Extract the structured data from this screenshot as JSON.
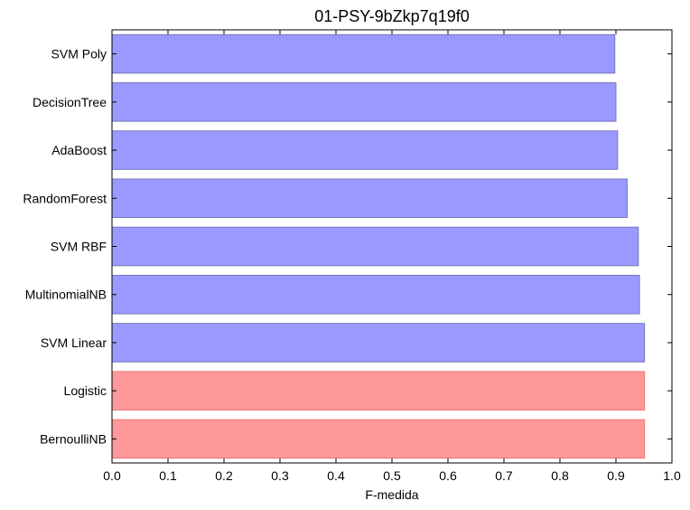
{
  "chart_data": {
    "type": "bar",
    "orientation": "horizontal",
    "title": "01-PSY-9bZkp7q19f0",
    "xlabel": "F-medida",
    "ylabel": "",
    "xlim": [
      0.0,
      1.0
    ],
    "xticks": [
      "0.0",
      "0.1",
      "0.2",
      "0.3",
      "0.4",
      "0.5",
      "0.6",
      "0.7",
      "0.8",
      "0.9",
      "1.0"
    ],
    "categories": [
      "SVM Poly",
      "DecisionTree",
      "AdaBoost",
      "RandomForest",
      "SVM RBF",
      "MultinomialNB",
      "SVM Linear",
      "Logistic",
      "BernoulliNB"
    ],
    "values": [
      0.898,
      0.9,
      0.903,
      0.92,
      0.94,
      0.942,
      0.951,
      0.951,
      0.951
    ],
    "highlighted": [
      false,
      false,
      false,
      false,
      false,
      false,
      false,
      true,
      true
    ],
    "colors": {
      "default_fill": "#9999ff",
      "default_edge": "#7777bb",
      "highlight_fill": "#ff9999",
      "highlight_edge": "#ee7777"
    },
    "grid": false,
    "legend": "none"
  }
}
